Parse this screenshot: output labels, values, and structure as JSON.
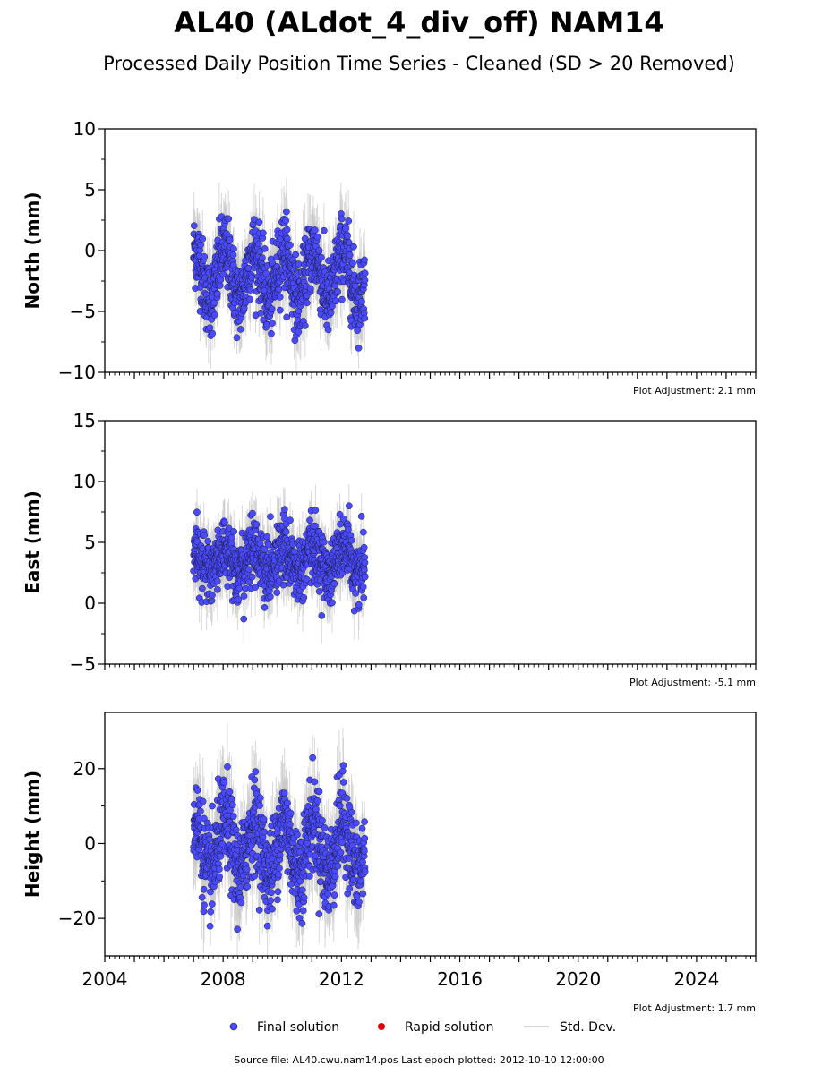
{
  "chart_data": {
    "type": "scatter",
    "title": "AL40 (ALdot_4_div_off) NAM14",
    "subtitle": "Processed Daily Position Time Series - Cleaned (SD > 20 Removed)",
    "x_range": [
      2004,
      2026
    ],
    "x_ticks": [
      2004,
      2008,
      2012,
      2016,
      2020,
      2024
    ],
    "panels": [
      {
        "name": "north",
        "ylabel": "North (mm)",
        "ylim": [
          -10,
          10
        ],
        "yticks": [
          -10,
          -5,
          0,
          5,
          10
        ],
        "ytick_labels": [
          "−10",
          "−5",
          "0",
          "5",
          "10"
        ],
        "adjustment": "Plot Adjustment: 2.1 mm",
        "series_summary": {
          "start": 2007.0,
          "end": 2012.8,
          "mean": -2.0,
          "annual_amplitude": 2.0,
          "spread": 1.5,
          "min": -8.0,
          "max": 5.0
        }
      },
      {
        "name": "east",
        "ylabel": "East (mm)",
        "ylim": [
          -5,
          15
        ],
        "yticks": [
          -5,
          0,
          5,
          10,
          15
        ],
        "ytick_labels": [
          "−5",
          "0",
          "5",
          "10",
          "15"
        ],
        "adjustment": "Plot Adjustment: -5.1 mm",
        "series_summary": {
          "start": 2007.0,
          "end": 2012.8,
          "mean": 3.5,
          "annual_amplitude": 1.0,
          "spread": 1.3,
          "min": -2.6,
          "max": 8.0
        }
      },
      {
        "name": "height",
        "ylabel": "Height (mm)",
        "ylim": [
          -30,
          35
        ],
        "yticks": [
          -20,
          0,
          20
        ],
        "ytick_labels": [
          "−20",
          "0",
          "20"
        ],
        "adjustment": "Plot Adjustment: 1.7 mm",
        "series_summary": {
          "start": 2007.0,
          "end": 2012.8,
          "mean": -1.0,
          "annual_amplitude": 7.0,
          "spread": 6.0,
          "min": -28.0,
          "max": 33.0
        }
      }
    ],
    "legend": {
      "placement": "bottom-center",
      "items": [
        {
          "label": "Final solution",
          "color": "#4a4aff"
        },
        {
          "label": "Rapid solution",
          "color": "#dd0000"
        },
        {
          "label": "Std. Dev.",
          "color": "#c8c8c8"
        }
      ]
    },
    "footer": "Source file: AL40.cwu.nam14.pos  Last epoch plotted: 2012-10-10 12:00:00",
    "colors": {
      "final": "#4a4aff",
      "rapid": "#dd0000",
      "stddev": "#c8c8c8",
      "marker_edge": "#1a1a40"
    }
  }
}
